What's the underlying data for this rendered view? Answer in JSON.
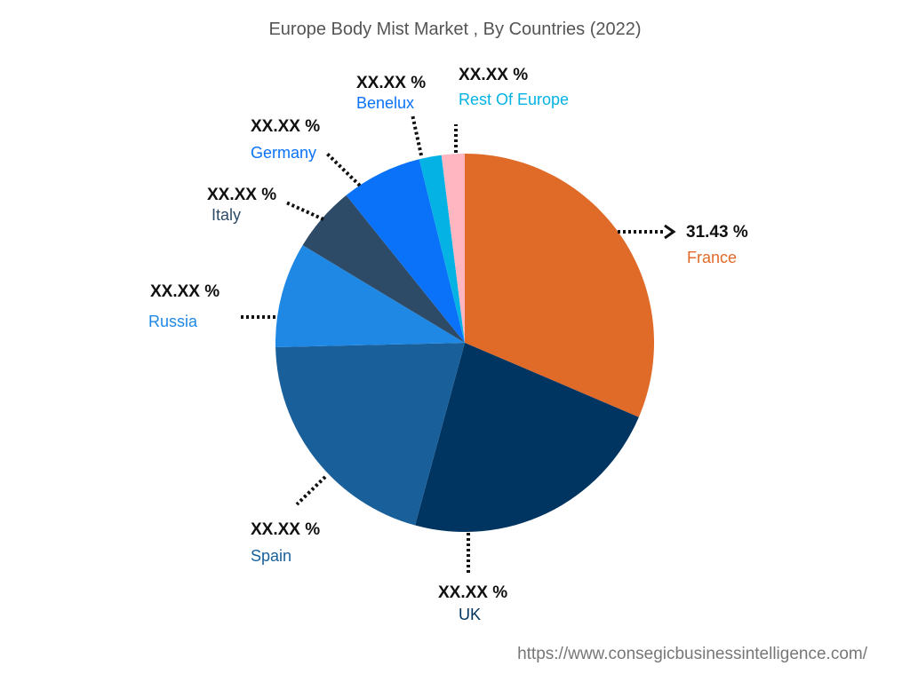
{
  "chart_data": {
    "type": "pie",
    "title": "Europe Body Mist Market , By Countries (2022)",
    "slices": [
      {
        "name": "France",
        "value_label": "31.43 %",
        "value": 31.43,
        "color": "#e06a28"
      },
      {
        "name": "UK",
        "value_label": "XX.XX %",
        "value": 22.8,
        "color": "#003461"
      },
      {
        "name": "Spain",
        "value_label": "XX.XX %",
        "value": 20.4,
        "color": "#19609b"
      },
      {
        "name": "Russia",
        "value_label": "XX.XX %",
        "value": 9.0,
        "color": "#1f88e5"
      },
      {
        "name": "Italy",
        "value_label": "XX.XX %",
        "value": 5.6,
        "color": "#2d4b67"
      },
      {
        "name": "Germany",
        "value_label": "XX.XX %",
        "value": 6.9,
        "color": "#0a72f8"
      },
      {
        "name": "Benelux",
        "value_label": "XX.XX %",
        "value": 1.9,
        "color": "#04b3e4"
      },
      {
        "name": "Rest Of Europe",
        "value_label": "XX.XX %",
        "value": 1.97,
        "color": "#ffb6c1"
      }
    ]
  },
  "footer": {
    "url": "https://www.consegicbusinessintelligence.com/"
  },
  "label_colors": {
    "France": "#e06a28",
    "UK": "#003461",
    "Spain": "#19609b",
    "Russia": "#1f88e5",
    "Italy": "#2d4b67",
    "Germany": "#0a72f8",
    "Benelux": "#0a72f8",
    "Rest Of Europe": "#04b3e4"
  }
}
